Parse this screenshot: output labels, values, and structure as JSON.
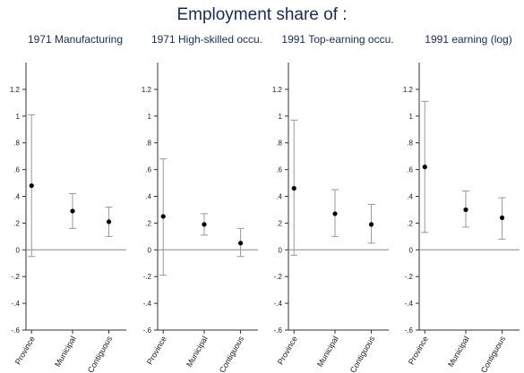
{
  "figure": {
    "title": "Employment share of :"
  },
  "chart_data": [
    {
      "type": "scatter",
      "title": "1971 Manufacturing",
      "categories": [
        "Province",
        "Municipal",
        "Contiguous"
      ],
      "estimates": [
        0.48,
        0.29,
        0.21
      ],
      "ci_lower": [
        -0.05,
        0.16,
        0.1
      ],
      "ci_upper": [
        1.01,
        0.42,
        0.32
      ],
      "ylim": [
        -0.6,
        1.4
      ],
      "yticks": [
        "1.2",
        "1",
        ".8",
        ".6",
        ".4",
        ".2",
        "0",
        "-.2",
        "-.4",
        "-.6"
      ],
      "reference_line": 0,
      "grid": false
    },
    {
      "type": "scatter",
      "title": "1971 High-skilled occu.",
      "categories": [
        "Province",
        "Municipal",
        "Contiguous"
      ],
      "estimates": [
        0.25,
        0.19,
        0.05
      ],
      "ci_lower": [
        -0.19,
        0.11,
        -0.05
      ],
      "ci_upper": [
        0.68,
        0.27,
        0.16
      ],
      "ylim": [
        -0.6,
        1.4
      ],
      "yticks": [
        "1.2",
        "1",
        ".8",
        ".6",
        ".4",
        ".2",
        "0",
        "-.2",
        "-.4",
        "-.6"
      ],
      "reference_line": 0,
      "grid": false
    },
    {
      "type": "scatter",
      "title": "1991 Top-earning occu.",
      "categories": [
        "Province",
        "Municipal",
        "Contiguous"
      ],
      "estimates": [
        0.46,
        0.27,
        0.19
      ],
      "ci_lower": [
        -0.04,
        0.1,
        0.05
      ],
      "ci_upper": [
        0.97,
        0.45,
        0.34
      ],
      "ylim": [
        -0.6,
        1.4
      ],
      "yticks": [
        "1.2",
        "1",
        ".8",
        ".6",
        ".4",
        ".2",
        "0",
        "-.2",
        "-.4",
        "-.6"
      ],
      "reference_line": 0,
      "grid": false
    },
    {
      "type": "scatter",
      "title": "1991 earning (log)",
      "categories": [
        "Province",
        "Municipal",
        "Contiguous"
      ],
      "estimates": [
        0.62,
        0.3,
        0.24
      ],
      "ci_lower": [
        0.13,
        0.17,
        0.08
      ],
      "ci_upper": [
        1.11,
        0.44,
        0.39
      ],
      "ylim": [
        -0.6,
        1.4
      ],
      "yticks": [
        "1.2",
        "1",
        ".8",
        ".6",
        ".4",
        ".2",
        "0",
        "-.2",
        "-.4",
        "-.6"
      ],
      "reference_line": 0,
      "grid": false
    }
  ]
}
